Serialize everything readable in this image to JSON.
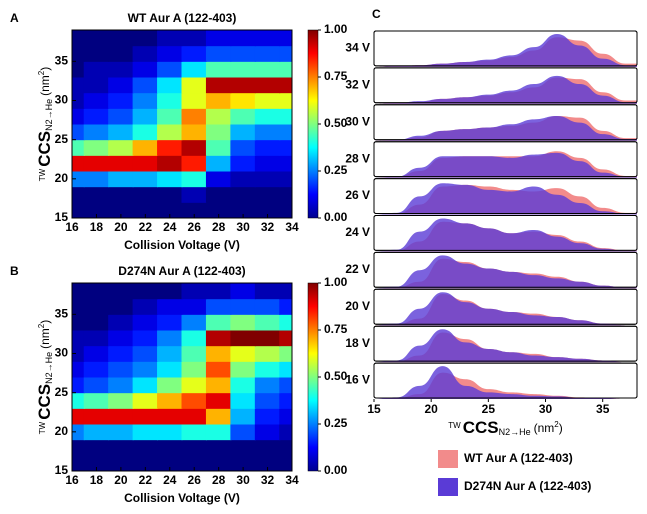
{
  "chart_data": [
    {
      "type": "heatmap",
      "panel": "A",
      "title": "WT Aur A (122-403)",
      "x_label": "Collision Voltage (V)",
      "y_label": {
        "pre": "TW",
        "main": "CCS",
        "sub": "N2→He",
        "unit": "(nm",
        "sup": "2",
        "close": ")"
      },
      "x": [
        16,
        18,
        20,
        22,
        24,
        26,
        28,
        30,
        32,
        34
      ],
      "y": [
        16,
        18,
        20,
        22,
        24,
        26,
        28,
        30,
        32,
        34,
        36,
        38
      ],
      "z": [
        [
          0,
          0,
          0,
          0,
          0,
          0,
          0,
          0,
          0,
          0
        ],
        [
          0,
          0,
          0,
          0,
          0,
          0.05,
          0,
          0,
          0,
          0
        ],
        [
          0.25,
          0.25,
          0.3,
          0.3,
          0.35,
          0.4,
          0.1,
          0.05,
          0.05,
          0.05
        ],
        [
          0.9,
          0.9,
          0.9,
          0.9,
          0.95,
          0.85,
          0.3,
          0.15,
          0.1,
          0.1
        ],
        [
          0.45,
          0.5,
          0.55,
          0.7,
          0.85,
          0.95,
          0.45,
          0.2,
          0.15,
          0.15
        ],
        [
          0.2,
          0.25,
          0.3,
          0.4,
          0.55,
          0.7,
          0.5,
          0.3,
          0.25,
          0.25
        ],
        [
          0.1,
          0.15,
          0.2,
          0.3,
          0.45,
          0.75,
          0.55,
          0.45,
          0.4,
          0.4
        ],
        [
          0.05,
          0.1,
          0.15,
          0.25,
          0.4,
          0.6,
          0.7,
          0.65,
          0.6,
          0.6
        ],
        [
          0.05,
          0.05,
          0.1,
          0.2,
          0.35,
          0.6,
          0.95,
          0.95,
          0.95,
          0.95
        ],
        [
          0,
          0.05,
          0.05,
          0.1,
          0.2,
          0.35,
          0.45,
          0.45,
          0.45,
          0.45
        ],
        [
          0,
          0,
          0,
          0.05,
          0.1,
          0.15,
          0.2,
          0.2,
          0.2,
          0.2
        ],
        [
          0,
          0,
          0,
          0,
          0.05,
          0.05,
          0.1,
          0.1,
          0.1,
          0.1
        ]
      ],
      "xlim": [
        16,
        34
      ],
      "ylim": [
        15,
        39
      ],
      "xticks": [
        16,
        18,
        20,
        22,
        24,
        26,
        28,
        30,
        32,
        34
      ],
      "yticks": [
        15,
        20,
        25,
        30,
        35
      ],
      "colorbar_lim": [
        0,
        1
      ],
      "colorbar_ticks": [
        {
          "value": 0,
          "label": "0.00"
        },
        {
          "value": 0.25,
          "label": "0.25"
        },
        {
          "value": 0.5,
          "label": "0.50"
        },
        {
          "value": 0.75,
          "label": "0.75"
        },
        {
          "value": 1,
          "label": "1.00"
        }
      ],
      "colormap": "jet"
    },
    {
      "type": "heatmap",
      "panel": "B",
      "title": "D274N Aur A (122-403)",
      "x_label": "Collision Voltage (V)",
      "y_label": {
        "pre": "TW",
        "main": "CCS",
        "sub": "N2→He",
        "unit": "(nm",
        "sup": "2",
        "close": ")"
      },
      "x": [
        16,
        18,
        20,
        22,
        24,
        26,
        28,
        30,
        32,
        34
      ],
      "y": [
        16,
        18,
        20,
        22,
        24,
        26,
        28,
        30,
        32,
        34,
        36,
        38
      ],
      "z": [
        [
          0,
          0,
          0,
          0,
          0,
          0,
          0,
          0,
          0,
          0
        ],
        [
          0,
          0,
          0,
          0,
          0,
          0,
          0,
          0,
          0,
          0
        ],
        [
          0.25,
          0.3,
          0.3,
          0.35,
          0.35,
          0.4,
          0.4,
          0.2,
          0.1,
          0.05
        ],
        [
          0.9,
          0.9,
          0.9,
          0.9,
          0.9,
          0.9,
          0.7,
          0.3,
          0.15,
          0.1
        ],
        [
          0.4,
          0.45,
          0.5,
          0.6,
          0.7,
          0.8,
          0.9,
          0.35,
          0.2,
          0.15
        ],
        [
          0.15,
          0.2,
          0.25,
          0.35,
          0.5,
          0.6,
          0.7,
          0.4,
          0.25,
          0.2
        ],
        [
          0.1,
          0.15,
          0.2,
          0.25,
          0.35,
          0.5,
          0.8,
          0.5,
          0.4,
          0.35
        ],
        [
          0.05,
          0.1,
          0.15,
          0.2,
          0.3,
          0.45,
          0.7,
          0.6,
          0.55,
          0.5
        ],
        [
          0.05,
          0.05,
          0.1,
          0.15,
          0.25,
          0.4,
          0.95,
          1,
          1,
          0.95
        ],
        [
          0,
          0,
          0.05,
          0.1,
          0.15,
          0.25,
          0.45,
          0.5,
          0.45,
          0.4
        ],
        [
          0,
          0,
          0,
          0.05,
          0.1,
          0.1,
          0.2,
          0.2,
          0.2,
          0.15
        ],
        [
          0,
          0,
          0,
          0,
          0,
          0.05,
          0.05,
          0.1,
          0.05,
          0.05
        ]
      ],
      "xlim": [
        16,
        34
      ],
      "ylim": [
        15,
        39
      ],
      "xticks": [
        16,
        18,
        20,
        22,
        24,
        26,
        28,
        30,
        32,
        34
      ],
      "yticks": [
        15,
        20,
        25,
        30,
        35
      ],
      "colorbar_lim": [
        0,
        1
      ],
      "colorbar_ticks": [
        {
          "value": 0,
          "label": "0.00"
        },
        {
          "value": 0.25,
          "label": "0.25"
        },
        {
          "value": 0.5,
          "label": "0.50"
        },
        {
          "value": 0.75,
          "label": "0.75"
        },
        {
          "value": 1,
          "label": "1.00"
        }
      ],
      "colormap": "jet"
    },
    {
      "type": "ridgeline",
      "panel": "C",
      "x_label": {
        "pre": "TW",
        "main": "CCS",
        "sub": "N2→He",
        "unit": "(nm",
        "sup": "2",
        "close": ")"
      },
      "categories": [
        "16 V",
        "18 V",
        "20 V",
        "22 V",
        "24 V",
        "26 V",
        "28 V",
        "30 V",
        "32 V",
        "34 V"
      ],
      "x": [
        15,
        17,
        19,
        21,
        23,
        25,
        27,
        29,
        31,
        33,
        35,
        37
      ],
      "xlim": [
        15,
        38
      ],
      "xticks": [
        15,
        20,
        25,
        30,
        35
      ],
      "ylim": [
        0,
        1
      ],
      "series": [
        {
          "name": "WT Aur A (122-403)",
          "color": "#f28b8b",
          "values": [
            [
              0,
              0.02,
              0.15,
              0.8,
              0.6,
              0.3,
              0.2,
              0.15,
              0.1,
              0.05,
              0.02,
              0
            ],
            [
              0,
              0.02,
              0.2,
              0.9,
              0.7,
              0.4,
              0.3,
              0.25,
              0.15,
              0.1,
              0.05,
              0
            ],
            [
              0,
              0.02,
              0.2,
              0.95,
              0.75,
              0.5,
              0.4,
              0.35,
              0.25,
              0.15,
              0.05,
              0
            ],
            [
              0,
              0.02,
              0.2,
              0.9,
              0.8,
              0.6,
              0.5,
              0.45,
              0.35,
              0.2,
              0.08,
              0.02
            ],
            [
              0,
              0.02,
              0.3,
              0.9,
              0.85,
              0.7,
              0.55,
              0.6,
              0.5,
              0.3,
              0.1,
              0.03
            ],
            [
              0,
              0.02,
              0.3,
              0.85,
              0.9,
              0.85,
              0.75,
              0.7,
              0.8,
              0.55,
              0.2,
              0.05
            ],
            [
              0,
              0.02,
              0.2,
              0.6,
              0.65,
              0.65,
              0.65,
              0.65,
              0.8,
              0.6,
              0.25,
              0.05
            ],
            [
              0,
              0.02,
              0.1,
              0.3,
              0.35,
              0.4,
              0.45,
              0.55,
              0.75,
              0.7,
              0.3,
              0.08
            ],
            [
              0,
              0.02,
              0.05,
              0.15,
              0.2,
              0.25,
              0.35,
              0.5,
              0.8,
              0.75,
              0.35,
              0.1
            ],
            [
              0,
              0.02,
              0.05,
              0.1,
              0.15,
              0.2,
              0.3,
              0.5,
              0.9,
              0.8,
              0.4,
              0.1
            ]
          ]
        },
        {
          "name": "D274N Aur A (122-403)",
          "color": "#5a3bd6",
          "values": [
            [
              0,
              0.05,
              0.4,
              1,
              0.4,
              0.2,
              0.15,
              0.1,
              0.08,
              0.04,
              0.02,
              0
            ],
            [
              0,
              0.05,
              0.5,
              1,
              0.6,
              0.4,
              0.3,
              0.2,
              0.15,
              0.1,
              0.05,
              0
            ],
            [
              0,
              0.05,
              0.5,
              1,
              0.7,
              0.5,
              0.4,
              0.3,
              0.25,
              0.15,
              0.05,
              0
            ],
            [
              0,
              0.05,
              0.55,
              1,
              0.75,
              0.6,
              0.5,
              0.4,
              0.3,
              0.2,
              0.08,
              0.02
            ],
            [
              0,
              0.05,
              0.6,
              1,
              0.85,
              0.7,
              0.55,
              0.65,
              0.45,
              0.25,
              0.08,
              0.02
            ],
            [
              0,
              0.05,
              0.55,
              0.95,
              0.9,
              0.75,
              0.7,
              0.85,
              0.6,
              0.35,
              0.1,
              0.03
            ],
            [
              0,
              0.03,
              0.3,
              0.65,
              0.65,
              0.65,
              0.6,
              0.7,
              0.75,
              0.5,
              0.15,
              0.03
            ],
            [
              0,
              0.02,
              0.15,
              0.3,
              0.35,
              0.4,
              0.5,
              0.65,
              0.75,
              0.55,
              0.2,
              0.05
            ],
            [
              0,
              0.02,
              0.08,
              0.15,
              0.2,
              0.28,
              0.4,
              0.6,
              0.85,
              0.6,
              0.25,
              0.05
            ],
            [
              0,
              0.02,
              0.05,
              0.1,
              0.15,
              0.22,
              0.35,
              0.6,
              1,
              0.65,
              0.25,
              0.05
            ]
          ]
        }
      ]
    }
  ]
}
